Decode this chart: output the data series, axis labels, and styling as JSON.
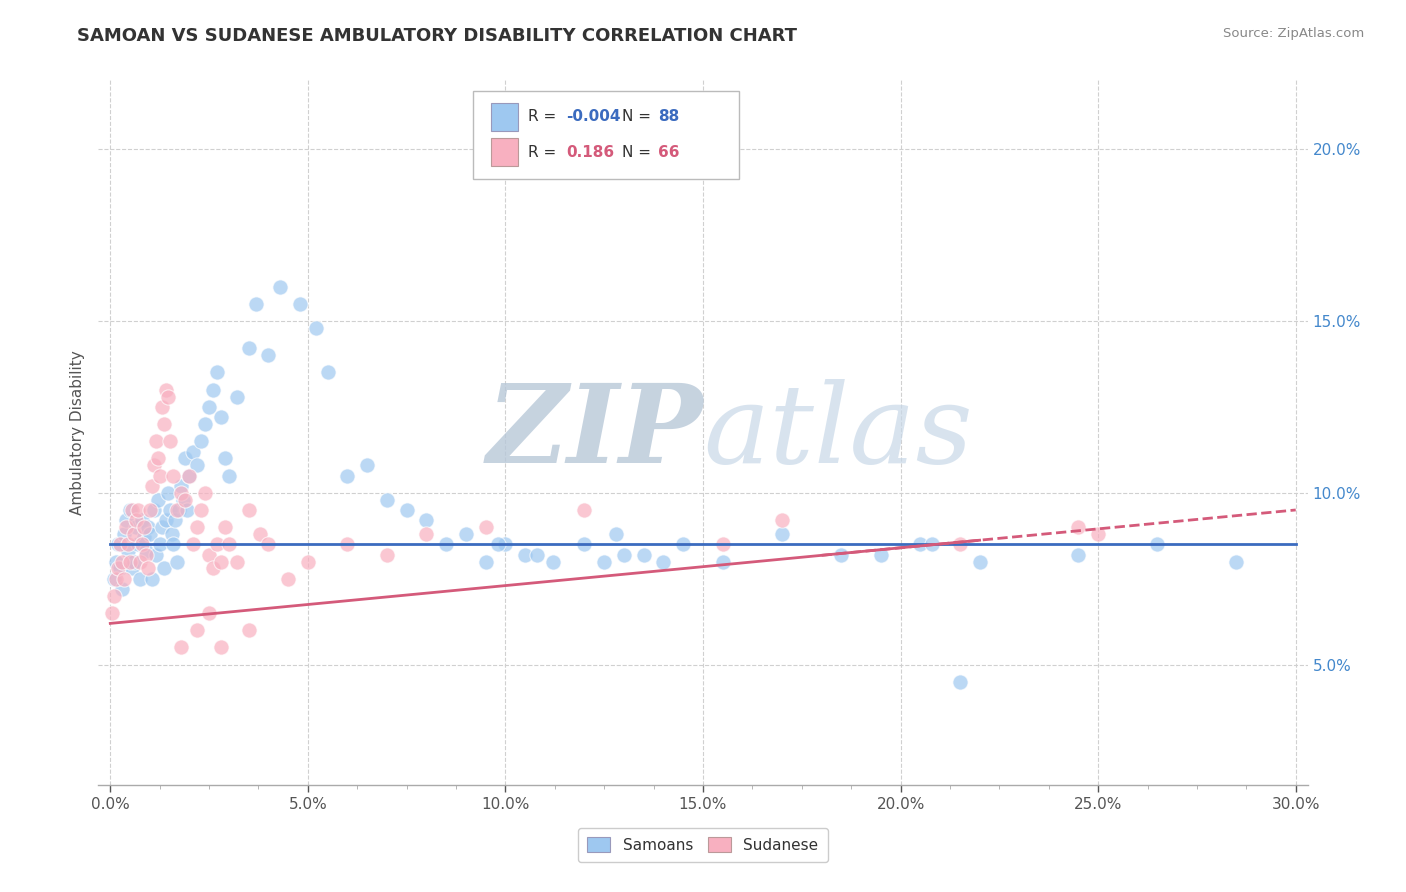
{
  "title": "SAMOAN VS SUDANESE AMBULATORY DISABILITY CORRELATION CHART",
  "source": "Source: ZipAtlas.com",
  "xlabel_ticks": [
    "0.0%",
    "",
    "",
    "",
    "",
    "",
    "",
    "",
    "5.0%",
    "",
    "",
    "",
    "",
    "",
    "",
    "",
    "10.0%",
    "",
    "",
    "",
    "",
    "",
    "",
    "",
    "15.0%",
    "",
    "",
    "",
    "",
    "",
    "",
    "",
    "20.0%",
    "",
    "",
    "",
    "",
    "",
    "",
    "",
    "25.0%",
    "",
    "",
    "",
    "",
    "",
    "",
    "",
    "30.0%"
  ],
  "xlabel_vals": [
    0,
    0.625,
    1.25,
    1.875,
    2.5,
    3.125,
    3.75,
    4.375,
    5,
    5.625,
    6.25,
    6.875,
    7.5,
    8.125,
    8.75,
    9.375,
    10,
    10.625,
    11.25,
    11.875,
    12.5,
    13.125,
    13.75,
    14.375,
    15,
    15.625,
    16.25,
    16.875,
    17.5,
    18.125,
    18.75,
    19.375,
    20,
    20.625,
    21.25,
    21.875,
    22.5,
    23.125,
    23.75,
    24.375,
    25,
    25.625,
    26.25,
    26.875,
    27.5,
    28.125,
    28.75,
    29.375,
    30
  ],
  "xlabel_major": [
    0,
    5,
    10,
    15,
    20,
    25,
    30
  ],
  "xlabel_major_labels": [
    "0.0%",
    "5.0%",
    "10.0%",
    "15.0%",
    "20.0%",
    "25.0%",
    "30.0%"
  ],
  "ylabel": "Ambulatory Disability",
  "ylabel_ticks": [
    "5.0%",
    "10.0%",
    "15.0%",
    "20.0%"
  ],
  "ylabel_vals": [
    5,
    10,
    15,
    20
  ],
  "xlim": [
    -0.3,
    30.3
  ],
  "ylim": [
    1.5,
    22
  ],
  "samoan_R": "-0.004",
  "samoan_N": "88",
  "sudanese_R": "0.186",
  "sudanese_N": "66",
  "samoan_color": "#9ec8f0",
  "sudanese_color": "#f8b0c0",
  "samoan_trend_color": "#3b6bbf",
  "sudanese_trend_color": "#d45a7a",
  "watermark_color": "#ccd8e8",
  "legend_label_samoan": "Samoans",
  "legend_label_sudanese": "Sudanese",
  "background_color": "#ffffff",
  "grid_color": "#d0d0d0",
  "samoan_x": [
    0.1,
    0.15,
    0.2,
    0.25,
    0.3,
    0.35,
    0.4,
    0.45,
    0.5,
    0.55,
    0.6,
    0.65,
    0.7,
    0.75,
    0.8,
    0.85,
    0.9,
    0.95,
    1.0,
    1.05,
    1.1,
    1.15,
    1.2,
    1.25,
    1.3,
    1.35,
    1.4,
    1.45,
    1.5,
    1.55,
    1.6,
    1.65,
    1.7,
    1.75,
    1.8,
    1.85,
    1.9,
    1.95,
    2.0,
    2.1,
    2.2,
    2.3,
    2.4,
    2.5,
    2.6,
    2.7,
    2.8,
    2.9,
    3.0,
    3.2,
    3.5,
    3.7,
    4.0,
    4.3,
    4.8,
    5.2,
    5.5,
    6.0,
    6.5,
    7.0,
    7.5,
    8.0,
    8.5,
    9.0,
    9.5,
    10.0,
    10.5,
    11.2,
    12.0,
    12.8,
    13.5,
    14.5,
    15.5,
    17.0,
    18.5,
    20.5,
    22.0,
    24.5,
    26.5,
    28.5,
    19.5,
    20.8,
    21.5,
    13.0,
    14.0,
    9.8,
    10.8,
    12.5
  ],
  "samoan_y": [
    7.5,
    8.0,
    8.5,
    7.8,
    7.2,
    8.8,
    9.2,
    8.3,
    9.5,
    7.8,
    8.0,
    9.0,
    8.5,
    7.5,
    9.2,
    8.7,
    8.3,
    9.0,
    8.8,
    7.5,
    9.5,
    8.2,
    9.8,
    8.5,
    9.0,
    7.8,
    9.2,
    10.0,
    9.5,
    8.8,
    8.5,
    9.2,
    8.0,
    9.5,
    10.2,
    9.8,
    11.0,
    9.5,
    10.5,
    11.2,
    10.8,
    11.5,
    12.0,
    12.5,
    13.0,
    13.5,
    12.2,
    11.0,
    10.5,
    12.8,
    14.2,
    15.5,
    14.0,
    16.0,
    15.5,
    14.8,
    13.5,
    10.5,
    10.8,
    9.8,
    9.5,
    9.2,
    8.5,
    8.8,
    8.0,
    8.5,
    8.2,
    8.0,
    8.5,
    8.8,
    8.2,
    8.5,
    8.0,
    8.8,
    8.2,
    8.5,
    8.0,
    8.2,
    8.5,
    8.0,
    8.2,
    8.5,
    4.5,
    8.2,
    8.0,
    8.5,
    8.2,
    8.0
  ],
  "sudanese_x": [
    0.05,
    0.1,
    0.15,
    0.2,
    0.25,
    0.3,
    0.35,
    0.4,
    0.45,
    0.5,
    0.55,
    0.6,
    0.65,
    0.7,
    0.75,
    0.8,
    0.85,
    0.9,
    0.95,
    1.0,
    1.05,
    1.1,
    1.15,
    1.2,
    1.25,
    1.3,
    1.35,
    1.4,
    1.45,
    1.5,
    1.6,
    1.7,
    1.8,
    1.9,
    2.0,
    2.1,
    2.2,
    2.3,
    2.4,
    2.5,
    2.6,
    2.7,
    2.8,
    2.9,
    3.0,
    3.2,
    3.5,
    3.8,
    4.0,
    4.5,
    5.0,
    6.0,
    7.0,
    8.0,
    9.5,
    12.0,
    15.5,
    17.0,
    21.5,
    24.5,
    25.0,
    2.5,
    1.8,
    2.2,
    2.8,
    3.5
  ],
  "sudanese_y": [
    6.5,
    7.0,
    7.5,
    7.8,
    8.5,
    8.0,
    7.5,
    9.0,
    8.5,
    8.0,
    9.5,
    8.8,
    9.2,
    9.5,
    8.0,
    8.5,
    9.0,
    8.2,
    7.8,
    9.5,
    10.2,
    10.8,
    11.5,
    11.0,
    10.5,
    12.5,
    12.0,
    13.0,
    12.8,
    11.5,
    10.5,
    9.5,
    10.0,
    9.8,
    10.5,
    8.5,
    9.0,
    9.5,
    10.0,
    8.2,
    7.8,
    8.5,
    8.0,
    9.0,
    8.5,
    8.0,
    9.5,
    8.8,
    8.5,
    7.5,
    8.0,
    8.5,
    8.2,
    8.8,
    9.0,
    9.5,
    8.5,
    9.2,
    8.5,
    9.0,
    8.8,
    6.5,
    5.5,
    6.0,
    5.5,
    6.0
  ],
  "samoan_trend_y0": 8.5,
  "samoan_trend_y30": 8.5,
  "sudanese_trend_x0": 0,
  "sudanese_trend_y0": 6.2,
  "sudanese_trend_x30": 30,
  "sudanese_trend_y30": 9.5
}
